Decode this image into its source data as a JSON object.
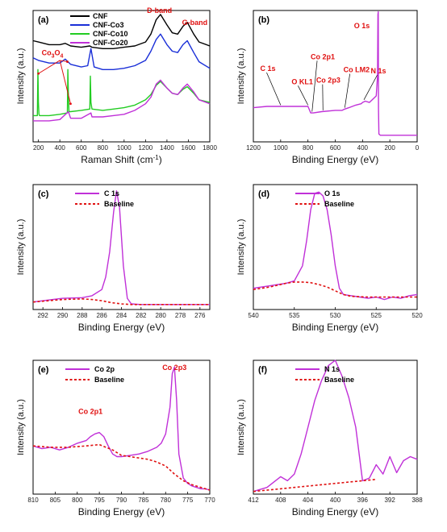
{
  "chart_data": [
    {
      "panel_label": "(a)",
      "type": "line",
      "xlabel": "Raman Shift (cm",
      "xlabel_sup": "-1",
      "xlabel_tail": ")",
      "ylabel": "Intensity (a.u.)",
      "xlim": [
        150,
        1800
      ],
      "ylim": [
        0,
        10
      ],
      "xticks": [
        200,
        400,
        600,
        800,
        1000,
        1200,
        1400,
        1600,
        1800
      ],
      "series": [
        {
          "name": "CNF",
          "color": "#000000",
          "x": [
            150,
            200,
            300,
            400,
            450,
            500,
            600,
            680,
            700,
            800,
            900,
            1000,
            1100,
            1200,
            1250,
            1300,
            1340,
            1400,
            1450,
            1500,
            1550,
            1590,
            1650,
            1700,
            1800
          ],
          "y": [
            7.7,
            7.6,
            7.4,
            7.4,
            7.5,
            7.3,
            7.2,
            7.3,
            7.2,
            7.1,
            7.1,
            7.2,
            7.3,
            7.6,
            8.2,
            9.3,
            9.7,
            8.9,
            8.3,
            8.2,
            8.8,
            9.1,
            8.2,
            7.6,
            7.3
          ]
        },
        {
          "name": "CNF-Co3",
          "color": "#1a2fd8",
          "x": [
            150,
            200,
            300,
            400,
            450,
            500,
            600,
            660,
            690,
            720,
            800,
            900,
            1000,
            1100,
            1200,
            1250,
            1300,
            1340,
            1400,
            1450,
            1500,
            1550,
            1590,
            1650,
            1700,
            1800
          ],
          "y": [
            6.4,
            6.2,
            6.0,
            6.0,
            6.3,
            5.9,
            5.7,
            5.8,
            7.1,
            5.7,
            5.5,
            5.5,
            5.6,
            5.8,
            6.2,
            6.9,
            7.8,
            8.2,
            7.4,
            6.9,
            6.8,
            7.4,
            7.7,
            6.8,
            6.1,
            5.6
          ]
        },
        {
          "name": "CNF-Co10",
          "color": "#22cc22",
          "x": [
            150,
            190,
            195,
            200,
            205,
            210,
            300,
            400,
            470,
            475,
            480,
            485,
            500,
            600,
            680,
            685,
            690,
            700,
            800,
            900,
            1000,
            1100,
            1200,
            1250,
            1300,
            1340,
            1400,
            1450,
            1500,
            1550,
            1590,
            1650,
            1700,
            1800
          ],
          "y": [
            2.0,
            2.0,
            5.5,
            3.0,
            2.1,
            2.0,
            2.0,
            2.1,
            2.2,
            5.5,
            3.5,
            2.3,
            2.3,
            2.4,
            2.5,
            5.0,
            3.0,
            2.5,
            2.4,
            2.5,
            2.6,
            2.8,
            3.2,
            3.6,
            4.3,
            4.6,
            4.1,
            3.7,
            3.6,
            4.0,
            4.2,
            3.7,
            3.2,
            3.0
          ]
        },
        {
          "name": "CNF-Co20",
          "color": "#c030d8",
          "x": [
            150,
            200,
            300,
            400,
            480,
            500,
            600,
            690,
            700,
            800,
            900,
            1000,
            1100,
            1200,
            1250,
            1300,
            1340,
            1400,
            1450,
            1500,
            1550,
            1590,
            1650,
            1700,
            1800
          ],
          "y": [
            1.6,
            1.6,
            1.6,
            1.7,
            2.3,
            1.8,
            1.8,
            2.2,
            1.9,
            1.9,
            2.0,
            2.1,
            2.4,
            2.9,
            3.4,
            4.4,
            4.7,
            4.1,
            3.7,
            3.6,
            4.1,
            4.4,
            3.8,
            3.2,
            2.9
          ]
        }
      ],
      "annotations": [
        "Co",
        "3",
        "O",
        "4",
        "D-band",
        "G-band"
      ]
    },
    {
      "panel_label": "(b)",
      "type": "line",
      "xlabel": "Binding Energy (eV)",
      "ylabel": "Intensity (a.u.)",
      "xlim": [
        1200,
        0
      ],
      "ylim": [
        0,
        10
      ],
      "xticks": [
        1200,
        1000,
        800,
        600,
        400,
        200,
        0
      ],
      "series": [
        {
          "name": "",
          "color": "#c030d8",
          "x": [
            1200,
            1100,
            1000,
            900,
            800,
            780,
            760,
            700,
            600,
            550,
            530,
            500,
            450,
            410,
            400,
            380,
            350,
            310,
            300,
            290,
            287,
            285,
            283,
            280,
            270,
            200,
            100,
            0
          ],
          "y": [
            2.6,
            2.7,
            2.7,
            2.7,
            2.7,
            2.2,
            2.2,
            2.3,
            2.4,
            2.4,
            2.5,
            2.6,
            2.8,
            2.9,
            3.0,
            3.1,
            3.0,
            3.4,
            3.5,
            5.0,
            9.7,
            9.9,
            2.5,
            0.6,
            0.5,
            0.5,
            0.5,
            0.5
          ]
        }
      ],
      "annotations": [
        "C 1s",
        "O KL1",
        "Co 2p1",
        "Co 2p3",
        "Co LM2",
        "O 1s",
        "N 1s"
      ]
    },
    {
      "panel_label": "(c)",
      "type": "line",
      "xlabel": "Binding Energy (eV)",
      "ylabel": "Intensity (a.u.)",
      "xlim": [
        293,
        275
      ],
      "ylim": [
        0,
        10
      ],
      "xticks": [
        292,
        290,
        288,
        286,
        284,
        282,
        280,
        278,
        276
      ],
      "series": [
        {
          "name": "C 1s",
          "color": "#c030d8",
          "x": [
            293,
            292,
            290,
            288,
            287,
            286,
            285.6,
            285.2,
            284.8,
            284.5,
            284.2,
            283.8,
            283.4,
            283,
            282,
            280,
            278,
            276,
            275
          ],
          "y": [
            0.6,
            0.7,
            0.9,
            0.95,
            1.1,
            1.6,
            2.6,
            4.6,
            7.8,
            9.5,
            8.2,
            3.5,
            0.9,
            0.45,
            0.4,
            0.4,
            0.4,
            0.4,
            0.4
          ]
        },
        {
          "name": "Baseline",
          "color": "#e01010",
          "dashed": true,
          "x": [
            293,
            290,
            288,
            287,
            286,
            285,
            284,
            283,
            282,
            280,
            276,
            275
          ],
          "y": [
            0.6,
            0.8,
            0.85,
            0.8,
            0.7,
            0.55,
            0.45,
            0.4,
            0.4,
            0.4,
            0.4,
            0.4
          ]
        }
      ]
    },
    {
      "panel_label": "(d)",
      "type": "line",
      "xlabel": "Binding Energy (eV)",
      "ylabel": "Intensity (a.u.)",
      "xlim": [
        540,
        520
      ],
      "ylim": [
        0,
        10
      ],
      "xticks": [
        540,
        535,
        530,
        525,
        520
      ],
      "series": [
        {
          "name": "O 1s",
          "color": "#c030d8",
          "x": [
            540,
            539,
            538,
            537,
            536,
            535,
            534,
            533.5,
            533,
            532.5,
            532,
            531.5,
            531,
            530.5,
            530,
            529.5,
            529,
            528,
            527,
            526,
            525,
            524,
            523,
            522,
            521,
            520
          ],
          "y": [
            1.7,
            1.8,
            1.9,
            2.0,
            2.1,
            2.3,
            3.5,
            5.5,
            8.0,
            9.3,
            9.4,
            9.1,
            8.0,
            6.0,
            3.5,
            1.7,
            1.2,
            1.1,
            1.0,
            0.9,
            1.0,
            0.8,
            1.0,
            0.9,
            1.1,
            1.2
          ]
        },
        {
          "name": "Baseline",
          "color": "#e01010",
          "dashed": true,
          "x": [
            540,
            538,
            536,
            535,
            534,
            533,
            532,
            531,
            530,
            529,
            528,
            526,
            524,
            522,
            520
          ],
          "y": [
            1.6,
            1.8,
            2.1,
            2.2,
            2.2,
            2.15,
            2.0,
            1.8,
            1.5,
            1.2,
            1.05,
            1.0,
            1.0,
            1.0,
            1.0
          ]
        }
      ]
    },
    {
      "panel_label": "(e)",
      "type": "line",
      "xlabel": "Binding Energy (eV)",
      "ylabel": "Intensity (a.u.)",
      "xlim": [
        810,
        770
      ],
      "ylim": [
        0,
        10
      ],
      "xticks": [
        810,
        805,
        800,
        795,
        790,
        785,
        780,
        775,
        770
      ],
      "series": [
        {
          "name": "Co 2p",
          "color": "#c030d8",
          "x": [
            810,
            808,
            806,
            804,
            802,
            800,
            798,
            797,
            796,
            795,
            794,
            793,
            792,
            791,
            790,
            788,
            786,
            784,
            782,
            781,
            780,
            779,
            778.5,
            778,
            777.5,
            777,
            776,
            775,
            774,
            773,
            772,
            771,
            770
          ],
          "y": [
            3.6,
            3.4,
            3.5,
            3.3,
            3.5,
            3.8,
            4.0,
            4.3,
            4.5,
            4.6,
            4.3,
            3.6,
            3.0,
            2.8,
            2.8,
            2.9,
            3.0,
            3.2,
            3.5,
            3.8,
            4.5,
            6.5,
            9.0,
            9.5,
            7.0,
            3.0,
            1.2,
            0.8,
            0.6,
            0.5,
            0.4,
            0.4,
            0.3
          ]
        },
        {
          "name": "Baseline",
          "color": "#e01010",
          "dashed": true,
          "x": [
            810,
            806,
            802,
            798,
            795,
            792,
            790,
            788,
            786,
            784,
            782,
            780,
            778,
            776,
            774,
            772,
            770
          ],
          "y": [
            3.6,
            3.5,
            3.5,
            3.6,
            3.7,
            3.3,
            2.9,
            2.8,
            2.7,
            2.6,
            2.4,
            2.1,
            1.5,
            1.0,
            0.7,
            0.5,
            0.3
          ]
        }
      ],
      "annotations": [
        "Co 2p1",
        "Co 2p3"
      ]
    },
    {
      "panel_label": "(f)",
      "type": "line",
      "xlabel": "Binding Energy (eV)",
      "ylabel": "Intensity (a.u.)",
      "xlim": [
        412,
        388
      ],
      "ylim": [
        0,
        10
      ],
      "xticks": [
        412,
        408,
        404,
        400,
        396,
        392,
        388
      ],
      "series": [
        {
          "name": "N 1s",
          "color": "#c030d8",
          "x": [
            412,
            410,
            408,
            407,
            406,
            405,
            404,
            403,
            402,
            401,
            400,
            399,
            398,
            397,
            396,
            395,
            394,
            393,
            392,
            391,
            390,
            389,
            388
          ],
          "y": [
            0.2,
            0.5,
            1.3,
            1.0,
            1.5,
            3.0,
            5.0,
            7.0,
            8.5,
            9.6,
            10.0,
            8.8,
            7.2,
            5.0,
            1.0,
            1.2,
            2.2,
            1.5,
            2.8,
            1.6,
            2.5,
            2.8,
            2.6
          ]
        },
        {
          "name": "Baseline",
          "color": "#e01010",
          "dashed": true,
          "x": [
            412,
            408,
            404,
            400,
            396,
            394
          ],
          "y": [
            0.2,
            0.4,
            0.6,
            0.8,
            1.0,
            1.1
          ]
        }
      ]
    }
  ]
}
